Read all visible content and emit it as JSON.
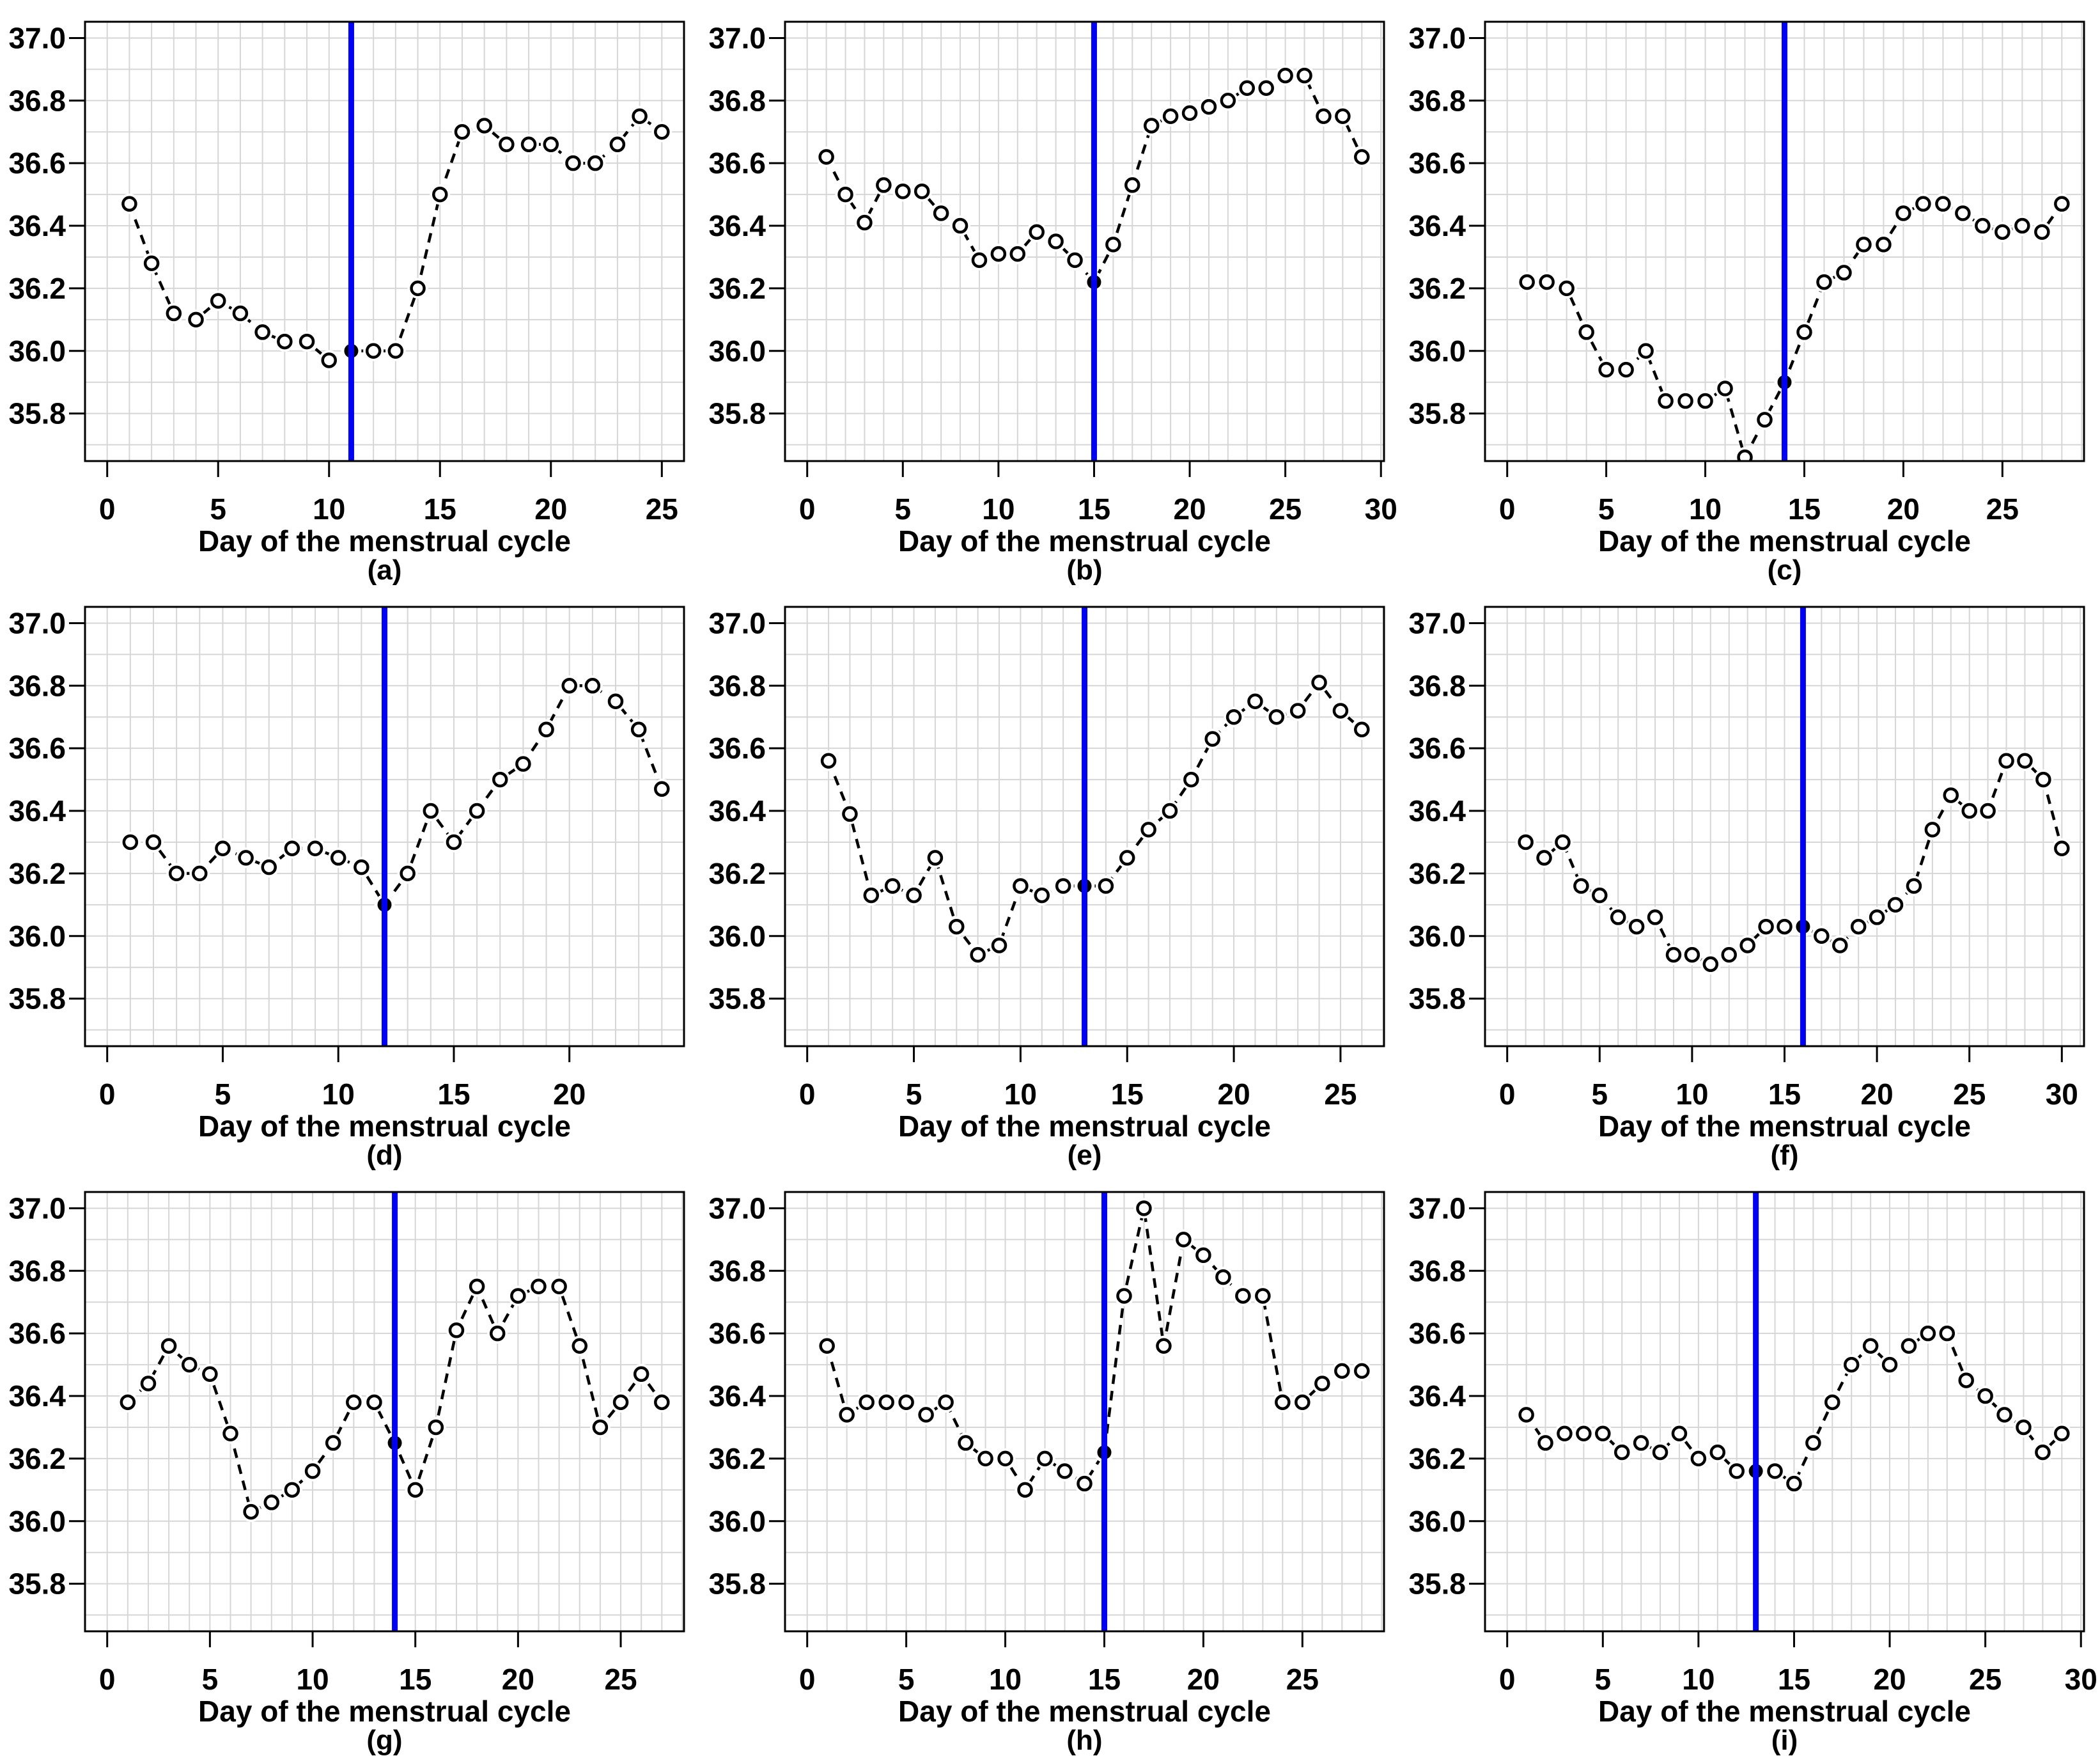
{
  "figure": {
    "xlabel": "Day of the menstrual cycle",
    "ylim": [
      35.648,
      37.052
    ],
    "yticks": [
      35.8,
      36.0,
      36.2,
      36.4,
      36.6,
      36.8,
      37.0
    ],
    "ygrid_range": [
      35.7,
      37.0
    ],
    "ygrid_step": 0.1,
    "xtick_step": 5,
    "xgrid_step": 1,
    "grid_on": true,
    "colors": {
      "vline": "#0000f2",
      "series": "#000000",
      "grid": "#d6d6d6",
      "axis": "#000000",
      "text": "#000000",
      "background": "#ffffff"
    }
  },
  "chart_data": [
    {
      "type": "line",
      "label": "(a)",
      "xlabel": "Day of the menstrual cycle",
      "x_first_day": 1,
      "ovulation_day": 11,
      "values": [
        36.47,
        36.28,
        36.12,
        36.1,
        36.16,
        36.12,
        36.06,
        36.03,
        36.03,
        35.97,
        36.0,
        36.0,
        36.0,
        36.2,
        36.5,
        36.7,
        36.72,
        36.66,
        36.66,
        36.66,
        36.6,
        36.6,
        36.66,
        36.75,
        36.7
      ]
    },
    {
      "type": "line",
      "label": "(b)",
      "xlabel": "Day of the menstrual cycle",
      "x_first_day": 1,
      "ovulation_day": 15,
      "values": [
        36.62,
        36.5,
        36.41,
        36.53,
        36.51,
        36.51,
        36.44,
        36.4,
        36.29,
        36.31,
        36.31,
        36.38,
        36.35,
        36.29,
        36.22,
        36.34,
        36.53,
        36.72,
        36.75,
        36.76,
        36.78,
        36.8,
        36.84,
        36.84,
        36.88,
        36.88,
        36.75,
        36.75,
        36.62
      ]
    },
    {
      "type": "line",
      "label": "(c)",
      "xlabel": "Day of the menstrual cycle",
      "x_first_day": 1,
      "ovulation_day": 14,
      "values": [
        36.22,
        36.22,
        36.2,
        36.06,
        35.94,
        35.94,
        36.0,
        35.84,
        35.84,
        35.84,
        35.88,
        35.66,
        35.78,
        35.9,
        36.06,
        36.22,
        36.25,
        36.34,
        36.34,
        36.44,
        36.47,
        36.47,
        36.44,
        36.4,
        36.38,
        36.4,
        36.38,
        36.47
      ]
    },
    {
      "type": "line",
      "label": "(d)",
      "xlabel": "Day of the menstrual cycle",
      "x_first_day": 1,
      "ovulation_day": 12,
      "values": [
        36.3,
        36.3,
        36.2,
        36.2,
        36.28,
        36.25,
        36.22,
        36.28,
        36.28,
        36.25,
        36.22,
        36.1,
        36.2,
        36.4,
        36.3,
        36.4,
        36.5,
        36.55,
        36.66,
        36.8,
        36.8,
        36.75,
        36.66,
        36.47
      ]
    },
    {
      "type": "line",
      "label": "(e)",
      "xlabel": "Day of the menstrual cycle",
      "x_first_day": 1,
      "ovulation_day": 13,
      "values": [
        36.56,
        36.39,
        36.13,
        36.16,
        36.13,
        36.25,
        36.03,
        35.94,
        35.97,
        36.16,
        36.13,
        36.16,
        36.16,
        36.16,
        36.25,
        36.34,
        36.4,
        36.5,
        36.63,
        36.7,
        36.75,
        36.7,
        36.72,
        36.81,
        36.72,
        36.66
      ]
    },
    {
      "type": "line",
      "label": "(f)",
      "xlabel": "Day of the menstrual cycle",
      "x_first_day": 1,
      "ovulation_day": 16,
      "values": [
        36.3,
        36.25,
        36.3,
        36.16,
        36.13,
        36.06,
        36.03,
        36.06,
        35.94,
        35.94,
        35.91,
        35.94,
        35.97,
        36.03,
        36.03,
        36.03,
        36.0,
        35.97,
        36.03,
        36.06,
        36.1,
        36.16,
        36.34,
        36.45,
        36.4,
        36.4,
        36.56,
        36.56,
        36.5,
        36.28
      ]
    },
    {
      "type": "line",
      "label": "(g)",
      "xlabel": "Day of the menstrual cycle",
      "x_first_day": 1,
      "ovulation_day": 14,
      "values": [
        36.38,
        36.44,
        36.56,
        36.5,
        36.47,
        36.28,
        36.03,
        36.06,
        36.1,
        36.16,
        36.25,
        36.38,
        36.38,
        36.25,
        36.1,
        36.3,
        36.61,
        36.75,
        36.6,
        36.72,
        36.75,
        36.75,
        36.56,
        36.3,
        36.38,
        36.47,
        36.38
      ]
    },
    {
      "type": "line",
      "label": "(h)",
      "xlabel": "Day of the menstrual cycle",
      "x_first_day": 1,
      "ovulation_day": 15,
      "values": [
        36.56,
        36.34,
        36.38,
        36.38,
        36.38,
        36.34,
        36.38,
        36.25,
        36.2,
        36.2,
        36.1,
        36.2,
        36.16,
        36.12,
        36.22,
        36.72,
        37.0,
        36.56,
        36.9,
        36.85,
        36.78,
        36.72,
        36.72,
        36.38,
        36.38,
        36.44,
        36.48,
        36.48
      ]
    },
    {
      "type": "line",
      "label": "(i)",
      "xlabel": "Day of the menstrual cycle",
      "x_first_day": 1,
      "ovulation_day": 13,
      "values": [
        36.34,
        36.25,
        36.28,
        36.28,
        36.28,
        36.22,
        36.25,
        36.22,
        36.28,
        36.2,
        36.22,
        36.16,
        36.16,
        36.16,
        36.12,
        36.25,
        36.38,
        36.5,
        36.56,
        36.5,
        36.56,
        36.6,
        36.6,
        36.45,
        36.4,
        36.34,
        36.3,
        36.22,
        36.28
      ]
    }
  ]
}
